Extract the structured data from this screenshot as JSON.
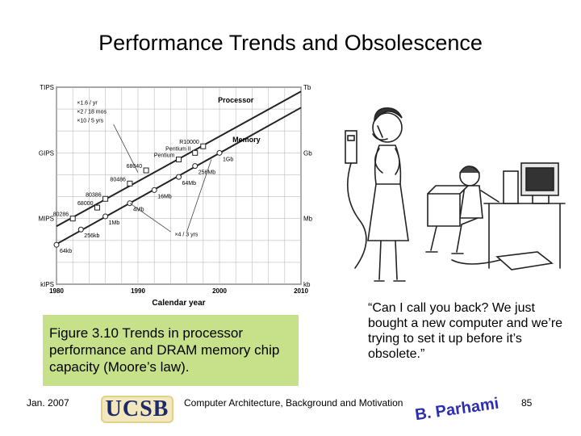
{
  "slide": {
    "title": "Performance Trends and Obsolescence",
    "caption": "Figure 3.10   Trends in processor performance and DRAM memory chip capacity (Moore’s law).",
    "quote": "“Can I call you back? We just bought a new computer and we’re trying to set it up before it’s obsolete.”",
    "footer": {
      "date": "Jan. 2007",
      "logo_text": "UCSB",
      "center_text": "Computer Architecture, Background and Motivation",
      "signature_text": "B. Parhami",
      "page_number": "85"
    }
  },
  "chart_data": {
    "type": "line",
    "xlabel": "Calendar year",
    "x_ticks": [
      "1980",
      "1990",
      "2000",
      "2010"
    ],
    "xlim": [
      1980,
      2010
    ],
    "y_left_ticks": [
      "kIPS",
      "MIPS",
      "GIPS",
      "TIPS"
    ],
    "y_right_ticks": [
      "kb",
      "Mb",
      "Gb",
      "Tb"
    ],
    "y_log_scale": true,
    "grid": true,
    "trend_notes": [
      "×1.6 / yr",
      "×2 / 18 mos",
      "×10 / 5 yrs",
      "×4 / 3 yrs"
    ],
    "series": [
      {
        "name": "Processor",
        "marker": "square",
        "points": [
          {
            "x": 1982,
            "y": 6.0,
            "label": "80286"
          },
          {
            "x": 1985,
            "y": 6.5,
            "label": "68000"
          },
          {
            "x": 1986,
            "y": 6.9,
            "label": "80386"
          },
          {
            "x": 1989,
            "y": 7.6,
            "label": "80486"
          },
          {
            "x": 1991,
            "y": 8.2,
            "label": "68040"
          },
          {
            "x": 1995,
            "y": 8.7,
            "label": "Pentium"
          },
          {
            "x": 1997,
            "y": 9.0,
            "label": "Pentium II"
          },
          {
            "x": 1998,
            "y": 9.3,
            "label": "R10000"
          }
        ]
      },
      {
        "name": "Memory",
        "marker": "circle",
        "points": [
          {
            "x": 1980,
            "y": 4.8,
            "label": "64kb"
          },
          {
            "x": 1983,
            "y": 5.5,
            "label": "256kb"
          },
          {
            "x": 1986,
            "y": 6.1,
            "label": "1Mb"
          },
          {
            "x": 1989,
            "y": 6.7,
            "label": "4Mb"
          },
          {
            "x": 1992,
            "y": 7.3,
            "label": "16Mb"
          },
          {
            "x": 1995,
            "y": 7.9,
            "label": "64Mb"
          },
          {
            "x": 1997,
            "y": 8.4,
            "label": "256Mb"
          },
          {
            "x": 2000,
            "y": 9.0,
            "label": "1Gb"
          }
        ]
      }
    ]
  }
}
